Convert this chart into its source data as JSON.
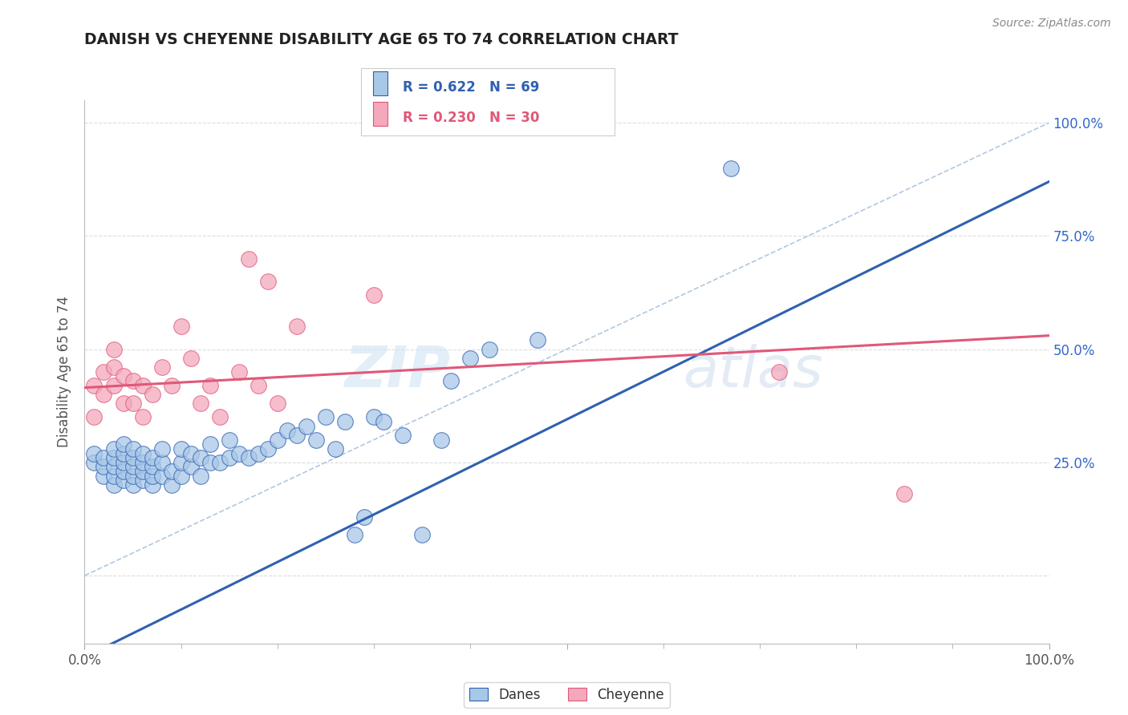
{
  "title": "DANISH VS CHEYENNE DISABILITY AGE 65 TO 74 CORRELATION CHART",
  "source": "Source: ZipAtlas.com",
  "ylabel": "Disability Age 65 to 74",
  "legend_blue_r": "R = 0.622",
  "legend_blue_n": "N = 69",
  "legend_pink_r": "R = 0.230",
  "legend_pink_n": "N = 30",
  "legend_label_blue": "Danes",
  "legend_label_pink": "Cheyenne",
  "blue_color": "#A8C8E8",
  "pink_color": "#F4A8BC",
  "blue_line_color": "#3060B0",
  "pink_line_color": "#E05878",
  "diag_color": "#B0C8E0",
  "xlim": [
    0.0,
    1.0
  ],
  "ylim": [
    -0.15,
    1.05
  ],
  "y_ticks": [
    0.0,
    0.25,
    0.5,
    0.75,
    1.0
  ],
  "danes_x": [
    0.01,
    0.01,
    0.02,
    0.02,
    0.02,
    0.03,
    0.03,
    0.03,
    0.03,
    0.03,
    0.04,
    0.04,
    0.04,
    0.04,
    0.04,
    0.05,
    0.05,
    0.05,
    0.05,
    0.05,
    0.06,
    0.06,
    0.06,
    0.06,
    0.07,
    0.07,
    0.07,
    0.07,
    0.08,
    0.08,
    0.08,
    0.09,
    0.09,
    0.1,
    0.1,
    0.1,
    0.11,
    0.11,
    0.12,
    0.12,
    0.13,
    0.13,
    0.14,
    0.15,
    0.15,
    0.16,
    0.17,
    0.18,
    0.19,
    0.2,
    0.21,
    0.22,
    0.23,
    0.24,
    0.25,
    0.26,
    0.27,
    0.28,
    0.29,
    0.3,
    0.31,
    0.33,
    0.35,
    0.37,
    0.38,
    0.4,
    0.42,
    0.47,
    0.67
  ],
  "danes_y": [
    0.25,
    0.27,
    0.22,
    0.24,
    0.26,
    0.2,
    0.22,
    0.24,
    0.26,
    0.28,
    0.21,
    0.23,
    0.25,
    0.27,
    0.29,
    0.2,
    0.22,
    0.24,
    0.26,
    0.28,
    0.21,
    0.23,
    0.25,
    0.27,
    0.2,
    0.22,
    0.24,
    0.26,
    0.22,
    0.25,
    0.28,
    0.2,
    0.23,
    0.22,
    0.25,
    0.28,
    0.24,
    0.27,
    0.22,
    0.26,
    0.25,
    0.29,
    0.25,
    0.26,
    0.3,
    0.27,
    0.26,
    0.27,
    0.28,
    0.3,
    0.32,
    0.31,
    0.33,
    0.3,
    0.35,
    0.28,
    0.34,
    0.09,
    0.13,
    0.35,
    0.34,
    0.31,
    0.09,
    0.3,
    0.43,
    0.48,
    0.5,
    0.52,
    0.9
  ],
  "cheyenne_x": [
    0.01,
    0.01,
    0.02,
    0.02,
    0.03,
    0.03,
    0.03,
    0.04,
    0.04,
    0.05,
    0.05,
    0.06,
    0.06,
    0.07,
    0.08,
    0.09,
    0.1,
    0.11,
    0.12,
    0.13,
    0.14,
    0.16,
    0.17,
    0.18,
    0.19,
    0.2,
    0.22,
    0.3,
    0.72,
    0.85
  ],
  "cheyenne_y": [
    0.35,
    0.42,
    0.4,
    0.45,
    0.42,
    0.46,
    0.5,
    0.38,
    0.44,
    0.38,
    0.43,
    0.35,
    0.42,
    0.4,
    0.46,
    0.42,
    0.55,
    0.48,
    0.38,
    0.42,
    0.35,
    0.45,
    0.7,
    0.42,
    0.65,
    0.38,
    0.55,
    0.62,
    0.45,
    0.18
  ],
  "blue_slope": 1.05,
  "blue_intercept": -0.18,
  "pink_slope": 0.115,
  "pink_intercept": 0.415
}
